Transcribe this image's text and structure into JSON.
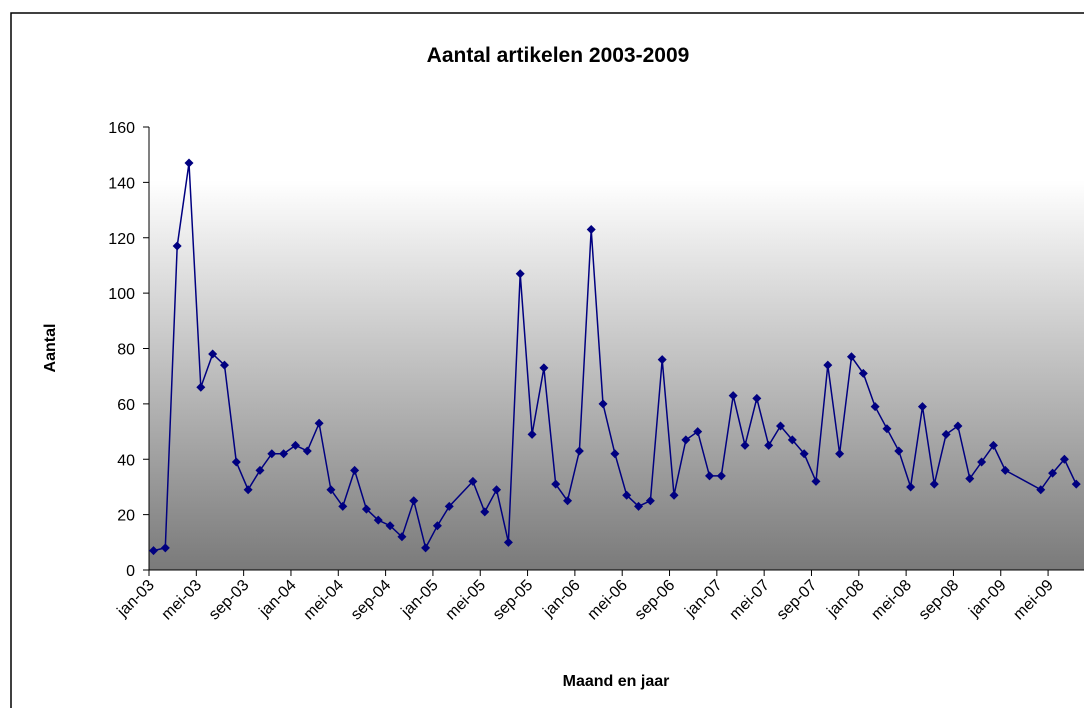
{
  "chart_data": {
    "type": "line",
    "title": "Aantal artikelen 2003-2009",
    "xlabel": "Maand en jaar",
    "ylabel": "Aantal",
    "ylim": [
      0,
      160
    ],
    "yticks": [
      "0",
      "20",
      "40",
      "60",
      "80",
      "100",
      "120",
      "140",
      "160"
    ],
    "xtick_labels": [
      "jan-03",
      "mei-03",
      "sep-03",
      "jan-04",
      "mei-04",
      "sep-04",
      "jan-05",
      "mei-05",
      "sep-05",
      "jan-06",
      "mei-06",
      "sep-06",
      "jan-07",
      "mei-07",
      "sep-07",
      "jan-08",
      "mei-08",
      "sep-08",
      "jan-09",
      "mei-09"
    ],
    "grid": false,
    "legend": "none",
    "colors": {
      "line": "#000080",
      "marker": "#000080",
      "plot_gradient_top": "#ffffff",
      "plot_gradient_bottom": "#7a7a7a",
      "frame": "#000000"
    },
    "series": [
      {
        "points": [
          [
            "jan-03",
            7
          ],
          [
            "feb-03",
            8
          ],
          [
            "mrt-03",
            117
          ],
          [
            "apr-03",
            147
          ],
          [
            "mei-03",
            66
          ],
          [
            "jun-03",
            78
          ],
          [
            "jul-03",
            74
          ],
          [
            "aug-03",
            39
          ],
          [
            "sep-03",
            29
          ],
          [
            "okt-03",
            36
          ],
          [
            "nov-03",
            42
          ],
          [
            "dec-03",
            42
          ],
          [
            "jan-04",
            45
          ],
          [
            "feb-04",
            43
          ],
          [
            "mrt-04",
            53
          ],
          [
            "apr-04",
            29
          ],
          [
            "mei-04",
            23
          ],
          [
            "jun-04",
            36
          ],
          [
            "jul-04",
            22
          ],
          [
            "aug-04",
            18
          ],
          [
            "sep-04",
            16
          ],
          [
            "okt-04",
            12
          ],
          [
            "nov-04",
            25
          ],
          [
            "dec-04",
            8
          ],
          [
            "jan-05",
            16
          ],
          [
            "feb-05",
            23
          ],
          [
            "apr-05",
            32
          ],
          [
            "mei-05",
            21
          ],
          [
            "jun-05",
            29
          ],
          [
            "jul-05",
            10
          ],
          [
            "aug-05",
            107
          ],
          [
            "sep-05",
            49
          ],
          [
            "okt-05",
            73
          ],
          [
            "nov-05",
            31
          ],
          [
            "dec-05",
            25
          ],
          [
            "jan-06",
            43
          ],
          [
            "feb-06",
            123
          ],
          [
            "mrt-06",
            60
          ],
          [
            "apr-06",
            42
          ],
          [
            "mei-06",
            27
          ],
          [
            "jun-06",
            23
          ],
          [
            "jul-06",
            25
          ],
          [
            "aug-06",
            76
          ],
          [
            "sep-06",
            27
          ],
          [
            "okt-06",
            47
          ],
          [
            "nov-06",
            50
          ],
          [
            "dec-06",
            34
          ],
          [
            "jan-07",
            34
          ],
          [
            "feb-07",
            63
          ],
          [
            "mrt-07",
            45
          ],
          [
            "apr-07",
            62
          ],
          [
            "mei-07",
            45
          ],
          [
            "jun-07",
            52
          ],
          [
            "jul-07",
            47
          ],
          [
            "aug-07",
            42
          ],
          [
            "sep-07",
            32
          ],
          [
            "okt-07",
            74
          ],
          [
            "nov-07",
            42
          ],
          [
            "dec-07",
            77
          ],
          [
            "jan-08",
            71
          ],
          [
            "feb-08",
            59
          ],
          [
            "mrt-08",
            51
          ],
          [
            "apr-08",
            43
          ],
          [
            "mei-08",
            30
          ],
          [
            "jun-08",
            59
          ],
          [
            "jul-08",
            31
          ],
          [
            "aug-08",
            49
          ],
          [
            "sep-08",
            52
          ],
          [
            "okt-08",
            33
          ],
          [
            "nov-08",
            39
          ],
          [
            "dec-08",
            45
          ],
          [
            "jan-09",
            36
          ],
          [
            "apr-09",
            29
          ],
          [
            "mei-09",
            35
          ],
          [
            "jun-09",
            40
          ],
          [
            "jul-09",
            31
          ]
        ]
      }
    ]
  }
}
